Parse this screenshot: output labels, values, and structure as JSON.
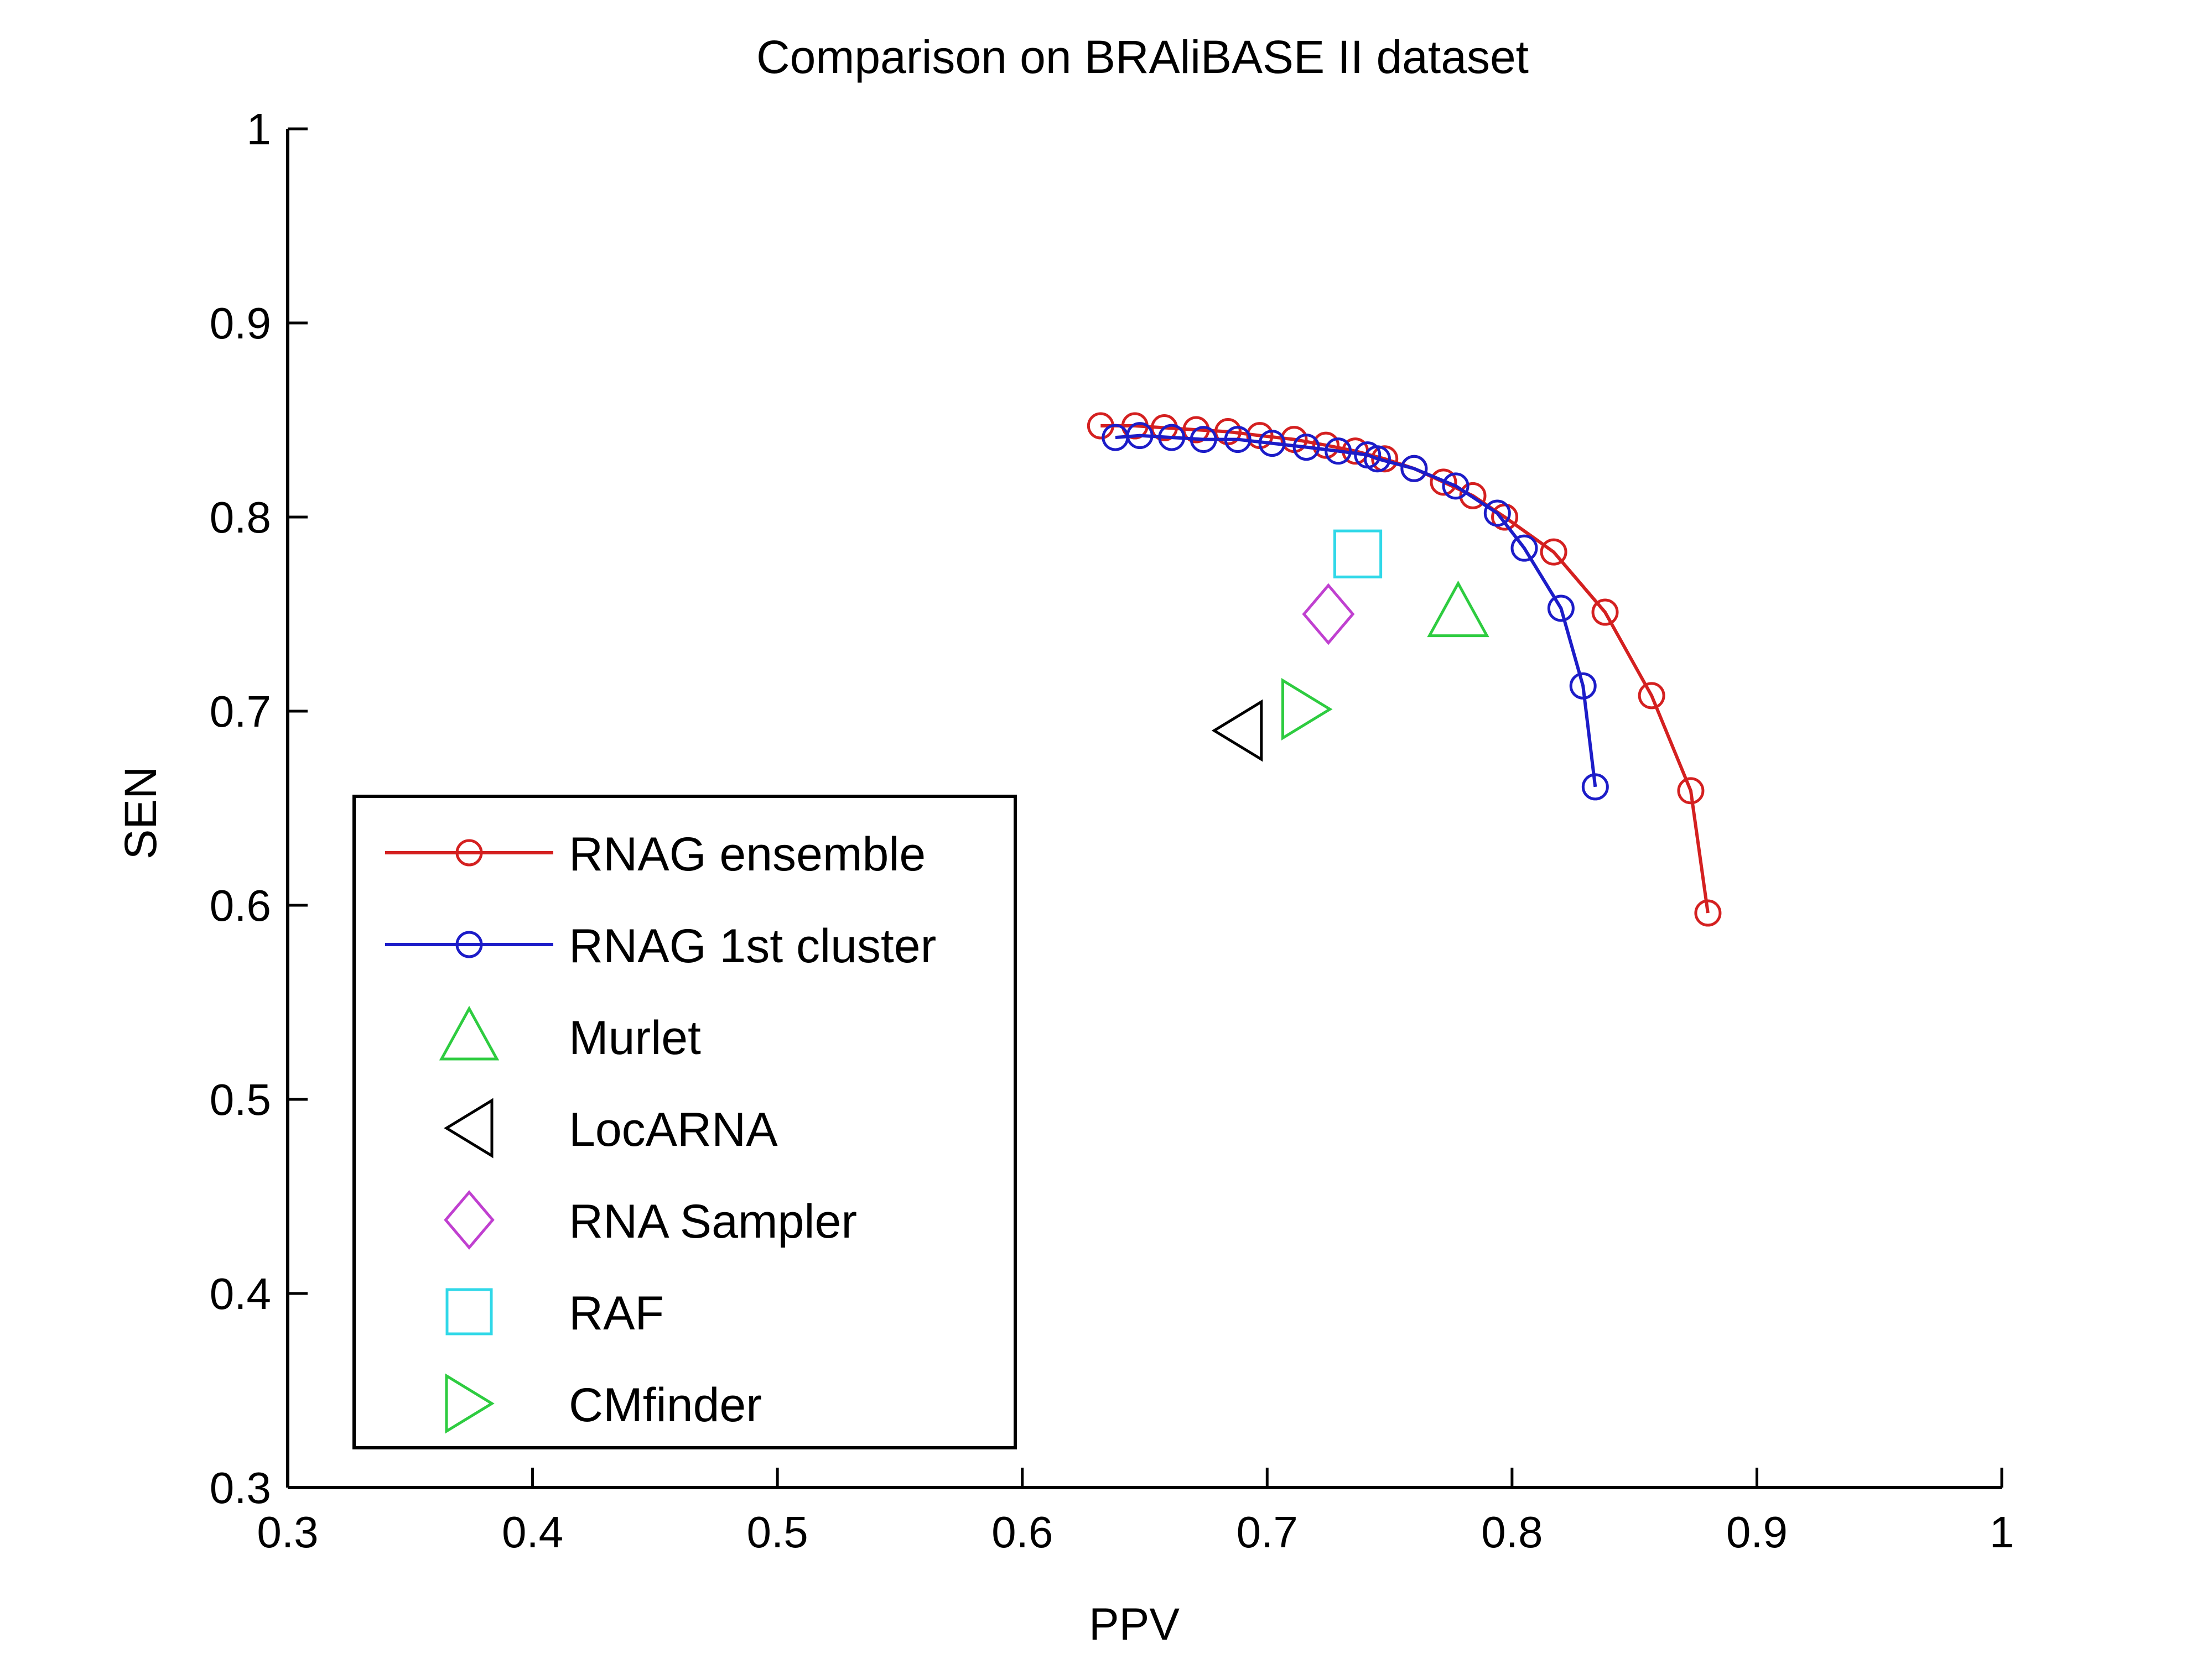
{
  "chart_data": {
    "type": "scatter",
    "title": "Comparison on BRAliBASE II dataset",
    "xlabel": "PPV",
    "ylabel": "SEN",
    "xlim": [
      0.3,
      1.0
    ],
    "ylim": [
      0.3,
      1.0
    ],
    "x_ticks": [
      "0.3",
      "0.4",
      "0.5",
      "0.6",
      "0.7",
      "0.8",
      "0.9",
      "1"
    ],
    "y_ticks": [
      "0.3",
      "0.4",
      "0.5",
      "0.6",
      "0.7",
      "0.8",
      "0.9",
      "1"
    ],
    "grid": false,
    "legend_position": "bottom-left",
    "series": [
      {
        "name": "RNAG ensemble",
        "kind": "line",
        "marker": "circle",
        "color": "#d42020",
        "x": [
          0.632,
          0.646,
          0.658,
          0.671,
          0.684,
          0.697,
          0.711,
          0.724,
          0.736,
          0.748,
          0.76,
          0.772,
          0.784,
          0.797,
          0.817,
          0.838,
          0.857,
          0.873,
          0.88
        ],
        "y": [
          0.847,
          0.847,
          0.846,
          0.845,
          0.844,
          0.842,
          0.84,
          0.837,
          0.834,
          0.83,
          0.825,
          0.818,
          0.811,
          0.8,
          0.782,
          0.751,
          0.708,
          0.659,
          0.596
        ]
      },
      {
        "name": "RNAG 1st cluster",
        "kind": "line",
        "marker": "circle",
        "color": "#1c1cc8",
        "x": [
          0.638,
          0.648,
          0.661,
          0.674,
          0.688,
          0.702,
          0.716,
          0.729,
          0.741,
          0.745,
          0.76,
          0.777,
          0.794,
          0.805,
          0.82,
          0.829,
          0.834
        ],
        "y": [
          0.841,
          0.842,
          0.841,
          0.84,
          0.84,
          0.838,
          0.836,
          0.834,
          0.832,
          0.83,
          0.825,
          0.816,
          0.802,
          0.784,
          0.753,
          0.713,
          0.661
        ]
      },
      {
        "name": "Murlet",
        "kind": "point",
        "marker": "triangle-up",
        "color": "#2ecc40",
        "x": [
          0.778
        ],
        "y": [
          0.751
        ]
      },
      {
        "name": "LocARNA",
        "kind": "point",
        "marker": "triangle-left",
        "color": "#000000",
        "x": [
          0.688
        ],
        "y": [
          0.69
        ]
      },
      {
        "name": "RNA Sampler",
        "kind": "point",
        "marker": "diamond",
        "color": "#c040d0",
        "x": [
          0.725
        ],
        "y": [
          0.75
        ]
      },
      {
        "name": "RAF",
        "kind": "point",
        "marker": "square",
        "color": "#30d8e8",
        "x": [
          0.737
        ],
        "y": [
          0.781
        ]
      },
      {
        "name": "CMfinder",
        "kind": "point",
        "marker": "triangle-right",
        "color": "#2ecc40",
        "x": [
          0.716
        ],
        "y": [
          0.701
        ]
      }
    ]
  }
}
